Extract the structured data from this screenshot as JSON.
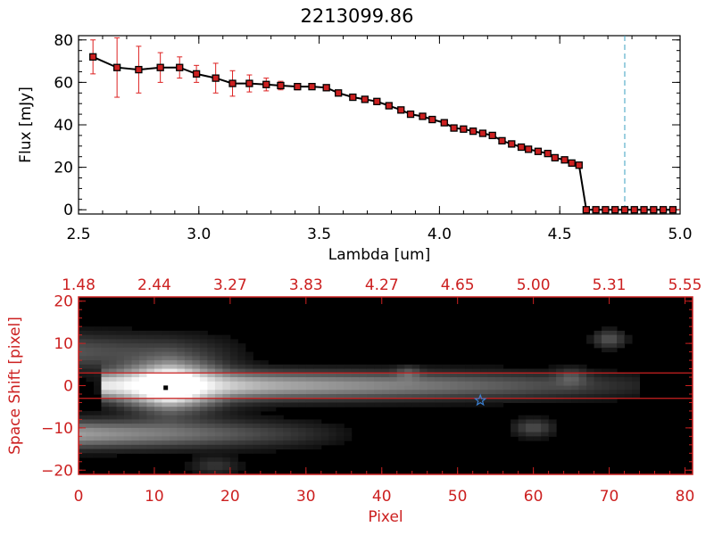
{
  "chart_data": [
    {
      "type": "line",
      "title": "2213099.86",
      "xlabel": "Lambda [um]",
      "ylabel": "Flux [mJy]",
      "xlim": [
        2.5,
        5.0
      ],
      "ylim": [
        -2,
        82
      ],
      "x_ticks": [
        "2.5",
        "3.0",
        "3.5",
        "4.0",
        "4.5",
        "5.0"
      ],
      "y_ticks": [
        "0",
        "20",
        "40",
        "60",
        "80"
      ],
      "grid": false,
      "legend": "none",
      "colors": {
        "line": "#000000",
        "marker": "#cc2020",
        "errorbar": "#dd2020",
        "cutoff_line": "#3aa0c0",
        "zero_line": "#dd2020"
      },
      "cutoff_wavelength": 4.77,
      "series": [
        {
          "x": [
            2.56,
            2.66,
            2.75,
            2.84,
            2.92,
            2.99,
            3.07,
            3.14,
            3.21,
            3.28,
            3.34,
            3.41,
            3.47,
            3.53,
            3.58,
            3.64,
            3.69,
            3.74,
            3.79,
            3.84,
            3.88,
            3.93,
            3.97,
            4.02,
            4.06,
            4.1,
            4.14,
            4.18,
            4.22,
            4.26,
            4.3,
            4.34,
            4.37,
            4.41,
            4.45,
            4.48,
            4.52,
            4.55,
            4.58,
            4.61,
            4.65,
            4.69,
            4.73,
            4.77,
            4.81,
            4.85,
            4.89,
            4.93,
            4.97
          ],
          "y": [
            72,
            67,
            66,
            67,
            67,
            64,
            62,
            59.5,
            59.5,
            59,
            58.5,
            58,
            58,
            57.5,
            55,
            53,
            52,
            51,
            49,
            47,
            45,
            44,
            42.5,
            41,
            38.5,
            38,
            37,
            36,
            35,
            32.5,
            31,
            29.5,
            28.5,
            27.5,
            26.5,
            24.5,
            23.5,
            22,
            21,
            0,
            0,
            0,
            0,
            0,
            0,
            0,
            0,
            0,
            0
          ],
          "yerr": [
            8,
            14,
            11,
            7,
            5,
            4,
            7,
            6,
            4,
            3,
            2,
            1.5,
            1,
            1,
            1,
            1,
            1,
            1,
            1,
            1,
            1,
            1,
            1,
            1,
            1,
            1,
            1,
            1,
            1,
            1,
            1,
            1,
            1,
            1,
            1,
            1,
            1,
            1,
            1,
            0,
            0,
            0,
            0,
            0,
            0,
            0,
            0,
            0,
            0
          ]
        }
      ]
    },
    {
      "type": "heatmap",
      "xlabel": "Pixel",
      "ylabel": "Space Shift [pixel]",
      "xlim": [
        0,
        81
      ],
      "ylim": [
        -21,
        21
      ],
      "x_ticks": [
        "0",
        "10",
        "20",
        "30",
        "40",
        "50",
        "60",
        "70",
        "80"
      ],
      "y_ticks": [
        "-20",
        "-10",
        "0",
        "10",
        "20"
      ],
      "top_axis_ticks": [
        "1.48",
        "2.44",
        "3.27",
        "3.83",
        "4.27",
        "4.65",
        "5.00",
        "5.31",
        "5.55"
      ],
      "colormap": "grayscale",
      "colors": {
        "axis": "#cc2020",
        "extraction_lines": "#cc2020",
        "star_marker": "#3a7fd0",
        "source_marker": "#000000"
      },
      "extraction_window": [
        -3,
        3
      ],
      "source_marker": {
        "x": 11.5,
        "y": -0.5
      },
      "star_marker": {
        "x": 53,
        "y": -3.5
      }
    }
  ]
}
